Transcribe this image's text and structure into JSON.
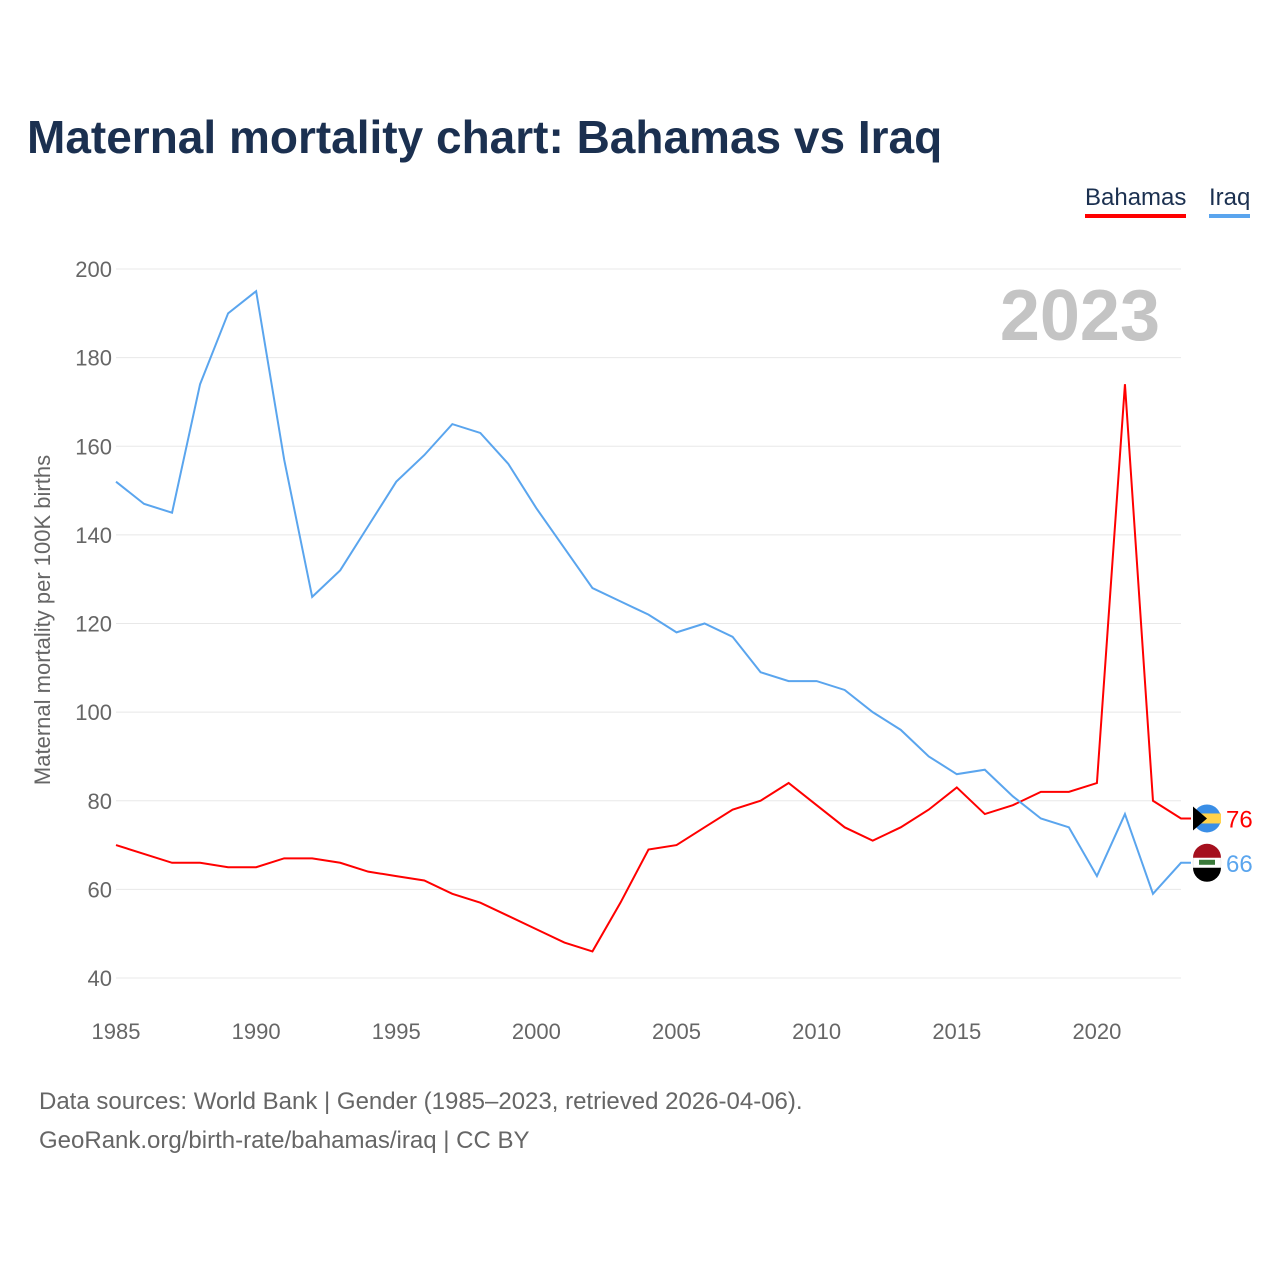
{
  "title": "Maternal mortality chart: Bahamas vs Iraq",
  "footer": {
    "line1": "Data sources: World Bank | Gender (1985–2023, retrieved 2026-04-06).",
    "line2": "GeoRank.org/birth-rate/bahamas/iraq | CC BY"
  },
  "chart_data": {
    "type": "line",
    "title": "Maternal mortality chart: Bahamas vs Iraq",
    "ylabel": "Maternal mortality per 100K births",
    "xlabel": "",
    "year_label": "2023",
    "ylim": [
      40,
      200
    ],
    "xlim": [
      1985,
      2023
    ],
    "yticks": [
      40,
      60,
      80,
      100,
      120,
      140,
      160,
      180,
      200
    ],
    "xticks": [
      1985,
      1990,
      1995,
      2000,
      2005,
      2010,
      2015,
      2020
    ],
    "grid": true,
    "legend": "top-right",
    "x": [
      1985,
      1986,
      1987,
      1988,
      1989,
      1990,
      1991,
      1992,
      1993,
      1994,
      1995,
      1996,
      1997,
      1998,
      1999,
      2000,
      2001,
      2002,
      2003,
      2004,
      2005,
      2006,
      2007,
      2008,
      2009,
      2010,
      2011,
      2012,
      2013,
      2014,
      2015,
      2016,
      2017,
      2018,
      2019,
      2020,
      2021,
      2022,
      2023
    ],
    "series": [
      {
        "name": "Bahamas",
        "color": "#ff0000",
        "end_label": "76",
        "values": [
          70,
          68,
          66,
          66,
          65,
          65,
          67,
          67,
          66,
          64,
          63,
          62,
          59,
          57,
          54,
          51,
          48,
          46,
          57,
          69,
          70,
          74,
          78,
          80,
          84,
          79,
          74,
          71,
          74,
          78,
          83,
          77,
          79,
          82,
          82,
          84,
          174,
          80,
          76
        ]
      },
      {
        "name": "Iraq",
        "color": "#5aa5ee",
        "end_label": "66",
        "values": [
          152,
          147,
          145,
          174,
          190,
          195,
          157,
          126,
          132,
          142,
          152,
          158,
          165,
          163,
          156,
          146,
          137,
          128,
          125,
          122,
          118,
          120,
          117,
          109,
          107,
          107,
          105,
          100,
          96,
          90,
          86,
          87,
          81,
          76,
          74,
          63,
          77,
          59,
          66
        ]
      }
    ]
  }
}
